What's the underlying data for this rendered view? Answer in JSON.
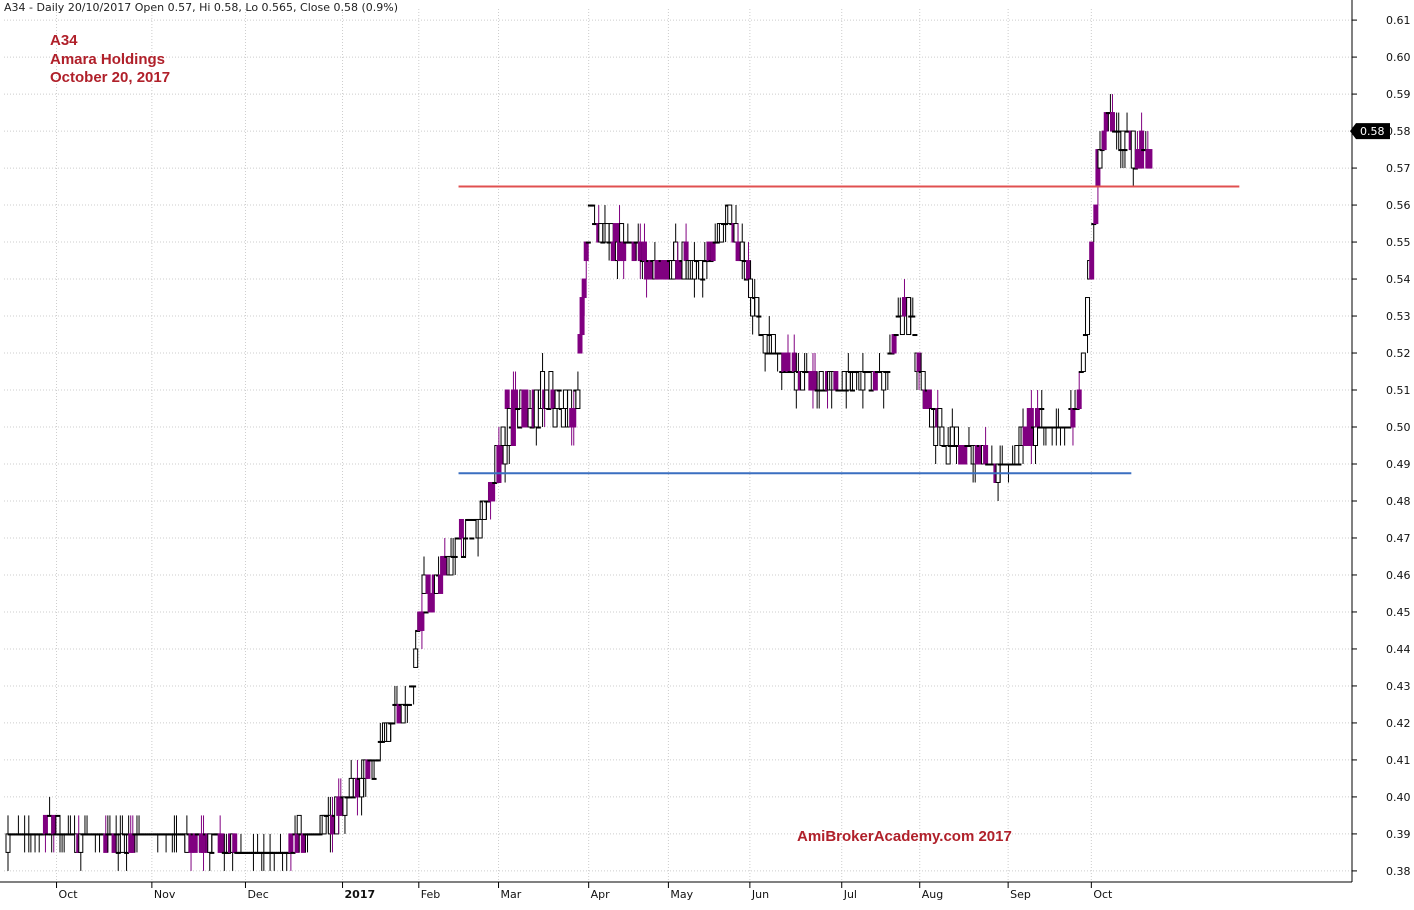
{
  "header": {
    "text": "A34 - Daily 20/10/2017 Open 0.57, Hi 0.58, Lo 0.565, Close 0.58 (0.9%)"
  },
  "annotations": {
    "ticker": "A34",
    "company": "Amara Holdings",
    "date": "October 20, 2017",
    "watermark": "AmiBrokerAcademy.com  2017"
  },
  "colors": {
    "bear_fill": "#800080",
    "bull_fill": "#ffffff",
    "candle_outline": "#000000",
    "resistance_line": "#e05050",
    "support_line": "#3a6fc0",
    "grid": "#cccccc",
    "text_accent": "#b0202a"
  },
  "chart_data": {
    "type": "candlestick",
    "ylim": [
      0.377,
      0.613
    ],
    "y_ticks": [
      0.38,
      0.39,
      0.4,
      0.41,
      0.42,
      0.43,
      0.44,
      0.45,
      0.46,
      0.47,
      0.48,
      0.49,
      0.5,
      0.51,
      0.52,
      0.53,
      0.54,
      0.55,
      0.56,
      0.57,
      0.58,
      0.59,
      0.6,
      0.61
    ],
    "x_ticks": [
      "Oct",
      "Nov",
      "Dec",
      "2017",
      "Feb",
      "Mar",
      "Apr",
      "May",
      "Jun",
      "Jul",
      "Aug",
      "Sep",
      "Oct"
    ],
    "last_close_label": "0.58",
    "horizontal_lines": [
      {
        "name": "resistance",
        "y": 0.565,
        "x_start": "Mar",
        "x_end": "Oct"
      },
      {
        "name": "support",
        "y": 0.4875,
        "x_start": "Mar",
        "x_end": "Oct"
      }
    ],
    "anchors": [
      [
        0,
        0.386,
        0.39
      ],
      [
        12,
        0.39,
        0.39
      ],
      [
        25,
        0.39,
        0.394
      ],
      [
        40,
        0.387,
        0.39
      ],
      [
        55,
        0.387,
        0.392
      ],
      [
        68,
        0.387,
        0.388
      ],
      [
        80,
        0.388,
        0.391
      ],
      [
        92,
        0.389,
        0.393
      ],
      [
        105,
        0.387,
        0.389
      ],
      [
        118,
        0.387,
        0.39
      ],
      [
        130,
        0.385,
        0.388
      ],
      [
        145,
        0.384,
        0.386
      ],
      [
        160,
        0.383,
        0.385
      ],
      [
        168,
        0.385,
        0.394
      ],
      [
        178,
        0.39,
        0.392
      ],
      [
        188,
        0.391,
        0.398
      ],
      [
        198,
        0.397,
        0.405
      ],
      [
        208,
        0.404,
        0.412
      ],
      [
        216,
        0.41,
        0.419
      ],
      [
        224,
        0.418,
        0.427
      ],
      [
        232,
        0.425,
        0.43
      ],
      [
        240,
        0.448,
        0.463
      ],
      [
        248,
        0.452,
        0.462
      ],
      [
        256,
        0.46,
        0.47
      ],
      [
        264,
        0.467,
        0.475
      ],
      [
        272,
        0.472,
        0.48
      ],
      [
        280,
        0.48,
        0.488
      ],
      [
        288,
        0.492,
        0.511
      ],
      [
        296,
        0.498,
        0.511
      ],
      [
        304,
        0.497,
        0.512
      ],
      [
        312,
        0.502,
        0.515
      ],
      [
        320,
        0.495,
        0.51
      ],
      [
        328,
        0.498,
        0.518
      ],
      [
        336,
        0.556,
        0.561
      ],
      [
        344,
        0.548,
        0.555
      ],
      [
        352,
        0.545,
        0.554
      ],
      [
        360,
        0.543,
        0.552
      ],
      [
        368,
        0.54,
        0.549
      ],
      [
        376,
        0.54,
        0.546
      ],
      [
        384,
        0.541,
        0.548
      ],
      [
        392,
        0.541,
        0.55
      ],
      [
        400,
        0.54,
        0.546
      ],
      [
        408,
        0.545,
        0.552
      ],
      [
        416,
        0.556,
        0.562
      ],
      [
        422,
        0.545,
        0.553
      ],
      [
        428,
        0.535,
        0.544
      ],
      [
        436,
        0.52,
        0.529
      ],
      [
        444,
        0.517,
        0.522
      ],
      [
        452,
        0.512,
        0.52
      ],
      [
        460,
        0.509,
        0.515
      ],
      [
        468,
        0.507,
        0.514
      ],
      [
        476,
        0.508,
        0.515
      ],
      [
        484,
        0.509,
        0.514
      ],
      [
        492,
        0.51,
        0.516
      ],
      [
        500,
        0.51,
        0.517
      ],
      [
        508,
        0.513,
        0.52
      ],
      [
        514,
        0.525,
        0.532
      ],
      [
        520,
        0.525,
        0.535
      ],
      [
        526,
        0.512,
        0.52
      ],
      [
        532,
        0.498,
        0.508
      ],
      [
        540,
        0.493,
        0.502
      ],
      [
        548,
        0.49,
        0.499
      ],
      [
        556,
        0.49,
        0.497
      ],
      [
        564,
        0.49,
        0.495
      ],
      [
        572,
        0.485,
        0.492
      ],
      [
        578,
        0.487,
        0.491
      ],
      [
        584,
        0.49,
        0.498
      ],
      [
        590,
        0.495,
        0.505
      ],
      [
        596,
        0.498,
        0.508
      ],
      [
        602,
        0.497,
        0.503
      ],
      [
        608,
        0.5,
        0.5
      ],
      [
        614,
        0.5,
        0.508
      ],
      [
        618,
        0.505,
        0.51
      ],
      [
        622,
        0.52,
        0.53
      ],
      [
        626,
        0.545,
        0.56
      ],
      [
        630,
        0.57,
        0.58
      ],
      [
        634,
        0.578,
        0.588
      ],
      [
        638,
        0.58,
        0.585
      ],
      [
        642,
        0.572,
        0.578
      ],
      [
        646,
        0.575,
        0.583
      ],
      [
        650,
        0.568,
        0.58
      ]
    ],
    "series": [
      {
        "values_note": ""
      }
    ]
  }
}
